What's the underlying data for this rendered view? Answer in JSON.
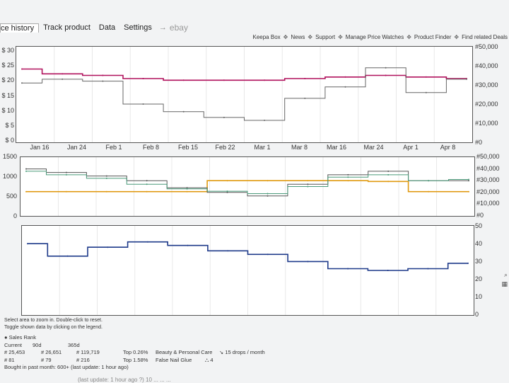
{
  "tabs": [
    {
      "label": "ce history",
      "active": true
    },
    {
      "label": "Track product",
      "active": false
    },
    {
      "label": "Data",
      "active": false
    },
    {
      "label": "Settings",
      "active": false
    }
  ],
  "tab_arrow": "→",
  "tab_ebay": "ebay",
  "topnav": [
    "Keepa Box",
    "News",
    "Support",
    "Manage Price Watches",
    "Product Finder",
    "Find related Deals"
  ],
  "topnav_sep": "✥",
  "chart1": {
    "left_ticks": [
      "$ 30",
      "$ 25",
      "$ 20",
      "$ 15",
      "$ 10",
      "$ 5",
      "$ 0"
    ],
    "right_ticks": [
      "#50,000",
      "#40,000",
      "#30,000",
      "#20,000",
      "#10,000",
      "#0"
    ],
    "x_ticks": [
      "Jan 16",
      "Jan 24",
      "Feb 1",
      "Feb 8",
      "Feb 15",
      "Feb 22",
      "Mar 1",
      "Mar 8",
      "Mar 16",
      "Mar 24",
      "Apr 1",
      "Apr 8"
    ]
  },
  "chart2": {
    "left_ticks": [
      "1500",
      "1000",
      "500",
      "0"
    ],
    "right_ticks": [
      "#50,000",
      "#40,000",
      "#30,000",
      "#20,000",
      "#10,000",
      "#0"
    ]
  },
  "chart3": {
    "right_ticks": [
      "50",
      "40",
      "30",
      "20",
      "10",
      "0"
    ]
  },
  "chart_data": [
    {
      "type": "line",
      "x": [
        "Jan 16",
        "Jan 24",
        "Feb 1",
        "Feb 8",
        "Feb 15",
        "Feb 22",
        "Mar 1",
        "Mar 8",
        "Mar 16",
        "Mar 24",
        "Apr 1",
        "Apr 8"
      ],
      "ylim": [
        0,
        30
      ],
      "y2lim": [
        0,
        50000
      ],
      "series": [
        {
          "axis": "left",
          "color": "#b0105c",
          "values": [
            23,
            21.5,
            21,
            20,
            19.5,
            19.5,
            19.5,
            20,
            20.5,
            21,
            20.5,
            20
          ]
        },
        {
          "axis": "right",
          "color": "#666666",
          "values": [
            31000,
            33000,
            32000,
            20000,
            16000,
            13000,
            11500,
            23000,
            29000,
            39000,
            26000,
            33000
          ]
        }
      ]
    },
    {
      "type": "line",
      "x": [
        "Jan 16",
        "Jan 24",
        "Feb 1",
        "Feb 8",
        "Feb 15",
        "Feb 22",
        "Mar 1",
        "Mar 8",
        "Mar 16",
        "Mar 24",
        "Apr 1",
        "Apr 8"
      ],
      "ylim": [
        0,
        1500
      ],
      "y2lim": [
        0,
        50000
      ],
      "series": [
        {
          "axis": "left",
          "color": "#e09a10",
          "values": [
            620,
            620,
            620,
            620,
            620,
            900,
            900,
            900,
            900,
            880,
            620,
            620
          ]
        },
        {
          "axis": "right",
          "color": "#555555",
          "values": [
            40000,
            37000,
            34000,
            30000,
            24000,
            20000,
            17000,
            27000,
            35000,
            38000,
            30000,
            30000
          ]
        },
        {
          "axis": "right",
          "color": "#4a9a7a",
          "values": [
            38000,
            35000,
            32000,
            27000,
            23000,
            21000,
            19000,
            25000,
            33000,
            35000,
            30000,
            31000
          ]
        }
      ]
    },
    {
      "type": "line",
      "x": [
        "Jan 16",
        "Jan 24",
        "Feb 1",
        "Feb 8",
        "Feb 15",
        "Feb 22",
        "Mar 1",
        "Mar 8",
        "Mar 16",
        "Mar 24",
        "Apr 1",
        "Apr 8"
      ],
      "ylim": [
        0,
        50
      ],
      "series": [
        {
          "axis": "right",
          "color": "#1e3a8a",
          "values": [
            40,
            33,
            38,
            41,
            39,
            36,
            34,
            30,
            26,
            25,
            26,
            29
          ]
        }
      ]
    }
  ],
  "footer": {
    "line1": "Select area to zoom in. Double-click to reset.",
    "line2": "Toggle shown data by clicking on the legend."
  },
  "stats": {
    "title": "● Sales Rank",
    "headers": [
      "Current",
      "90d",
      "365d"
    ],
    "row1": [
      "# 25,453",
      "# 26,651",
      "# 119,719",
      "Top 0.26%",
      "Beauty & Personal Care",
      "↘ 15 drops / month"
    ],
    "row2": [
      "# 81",
      "# 79",
      "# 216",
      "Top 1.58%",
      "False Nail Glue",
      "⛬ 4"
    ],
    "bought": "Bought in past month: 600+ (last update: 1 hour ago)"
  },
  "bottom_blur": "(last update: 1 hour ago ?)    10 ...   ...   ..."
}
